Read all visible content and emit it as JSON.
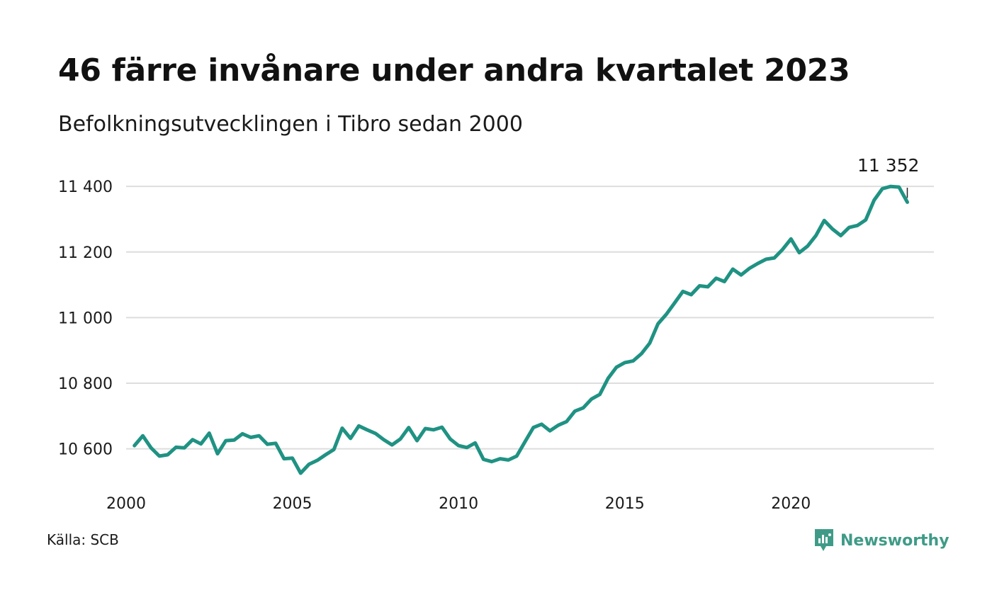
{
  "title": "46 färre invånare under andra kvartalet 2023",
  "subtitle": "Befolkningsutvecklingen i Tibro sedan 2000",
  "source": "Källa: SCB",
  "logo": {
    "text": "Newsworthy",
    "icon": "newsworthy-chart-icon"
  },
  "colors": {
    "line": "#1f9283",
    "grid": "#dddddd",
    "logo": "#3f9b87"
  },
  "chart_data": {
    "type": "line",
    "title": "46 färre invånare under andra kvartalet 2023",
    "subtitle": "Befolkningsutvecklingen i Tibro sedan 2000",
    "xlabel": "",
    "ylabel": "",
    "xlim": [
      2000,
      2024.3
    ],
    "ylim": [
      10500,
      11450
    ],
    "yticks": [
      10600,
      10800,
      11000,
      11200,
      11400
    ],
    "ytick_labels": [
      "10 600",
      "10 800",
      "11 000",
      "11 200",
      "11 400"
    ],
    "xticks": [
      2000,
      2005,
      2010,
      2015,
      2020
    ],
    "xtick_labels": [
      "2000",
      "2005",
      "2010",
      "2015",
      "2020"
    ],
    "grid": true,
    "last_label": "11 352",
    "series": [
      {
        "x": [
          2000.25,
          2000.5,
          2000.75,
          2001.0,
          2001.25,
          2001.5,
          2001.75,
          2002.0,
          2002.25,
          2002.5,
          2002.75,
          2003.0,
          2003.25,
          2003.5,
          2003.75,
          2004.0,
          2004.25,
          2004.5,
          2004.75,
          2005.0,
          2005.25,
          2005.5,
          2005.75,
          2006.0,
          2006.25,
          2006.5,
          2006.75,
          2007.0,
          2007.25,
          2007.5,
          2007.75,
          2008.0,
          2008.25,
          2008.5,
          2008.75,
          2009.0,
          2009.25,
          2009.5,
          2009.75,
          2010.0,
          2010.25,
          2010.5,
          2010.75,
          2011.0,
          2011.25,
          2011.5,
          2011.75,
          2012.0,
          2012.25,
          2012.5,
          2012.75,
          2013.0,
          2013.25,
          2013.5,
          2013.75,
          2014.0,
          2014.25,
          2014.5,
          2014.75,
          2015.0,
          2015.25,
          2015.5,
          2015.75,
          2016.0,
          2016.25,
          2016.5,
          2016.75,
          2017.0,
          2017.25,
          2017.5,
          2017.75,
          2018.0,
          2018.25,
          2018.5,
          2018.75,
          2019.0,
          2019.25,
          2019.5,
          2019.75,
          2020.0,
          2020.25,
          2020.5,
          2020.75,
          2021.0,
          2021.25,
          2021.5,
          2021.75,
          2022.0,
          2022.25,
          2022.5,
          2022.75,
          2023.0,
          2023.25,
          2023.5
        ],
        "values": [
          10610,
          10640,
          10603,
          10578,
          10582,
          10605,
          10603,
          10628,
          10615,
          10648,
          10585,
          10625,
          10627,
          10646,
          10635,
          10640,
          10614,
          10617,
          10570,
          10572,
          10526,
          10553,
          10565,
          10582,
          10598,
          10663,
          10632,
          10670,
          10658,
          10647,
          10628,
          10612,
          10630,
          10665,
          10625,
          10662,
          10658,
          10666,
          10630,
          10610,
          10604,
          10618,
          10568,
          10561,
          10570,
          10566,
          10578,
          10622,
          10665,
          10675,
          10655,
          10672,
          10683,
          10715,
          10725,
          10752,
          10766,
          10815,
          10849,
          10863,
          10868,
          10890,
          10922,
          10981,
          11010,
          11045,
          11080,
          11070,
          11097,
          11094,
          11120,
          11110,
          11148,
          11130,
          11150,
          11165,
          11178,
          11182,
          11208,
          11240,
          11198,
          11218,
          11250,
          11296,
          11270,
          11250,
          11275,
          11281,
          11298,
          11358,
          11393,
          11400,
          11398,
          11352
        ]
      }
    ]
  }
}
